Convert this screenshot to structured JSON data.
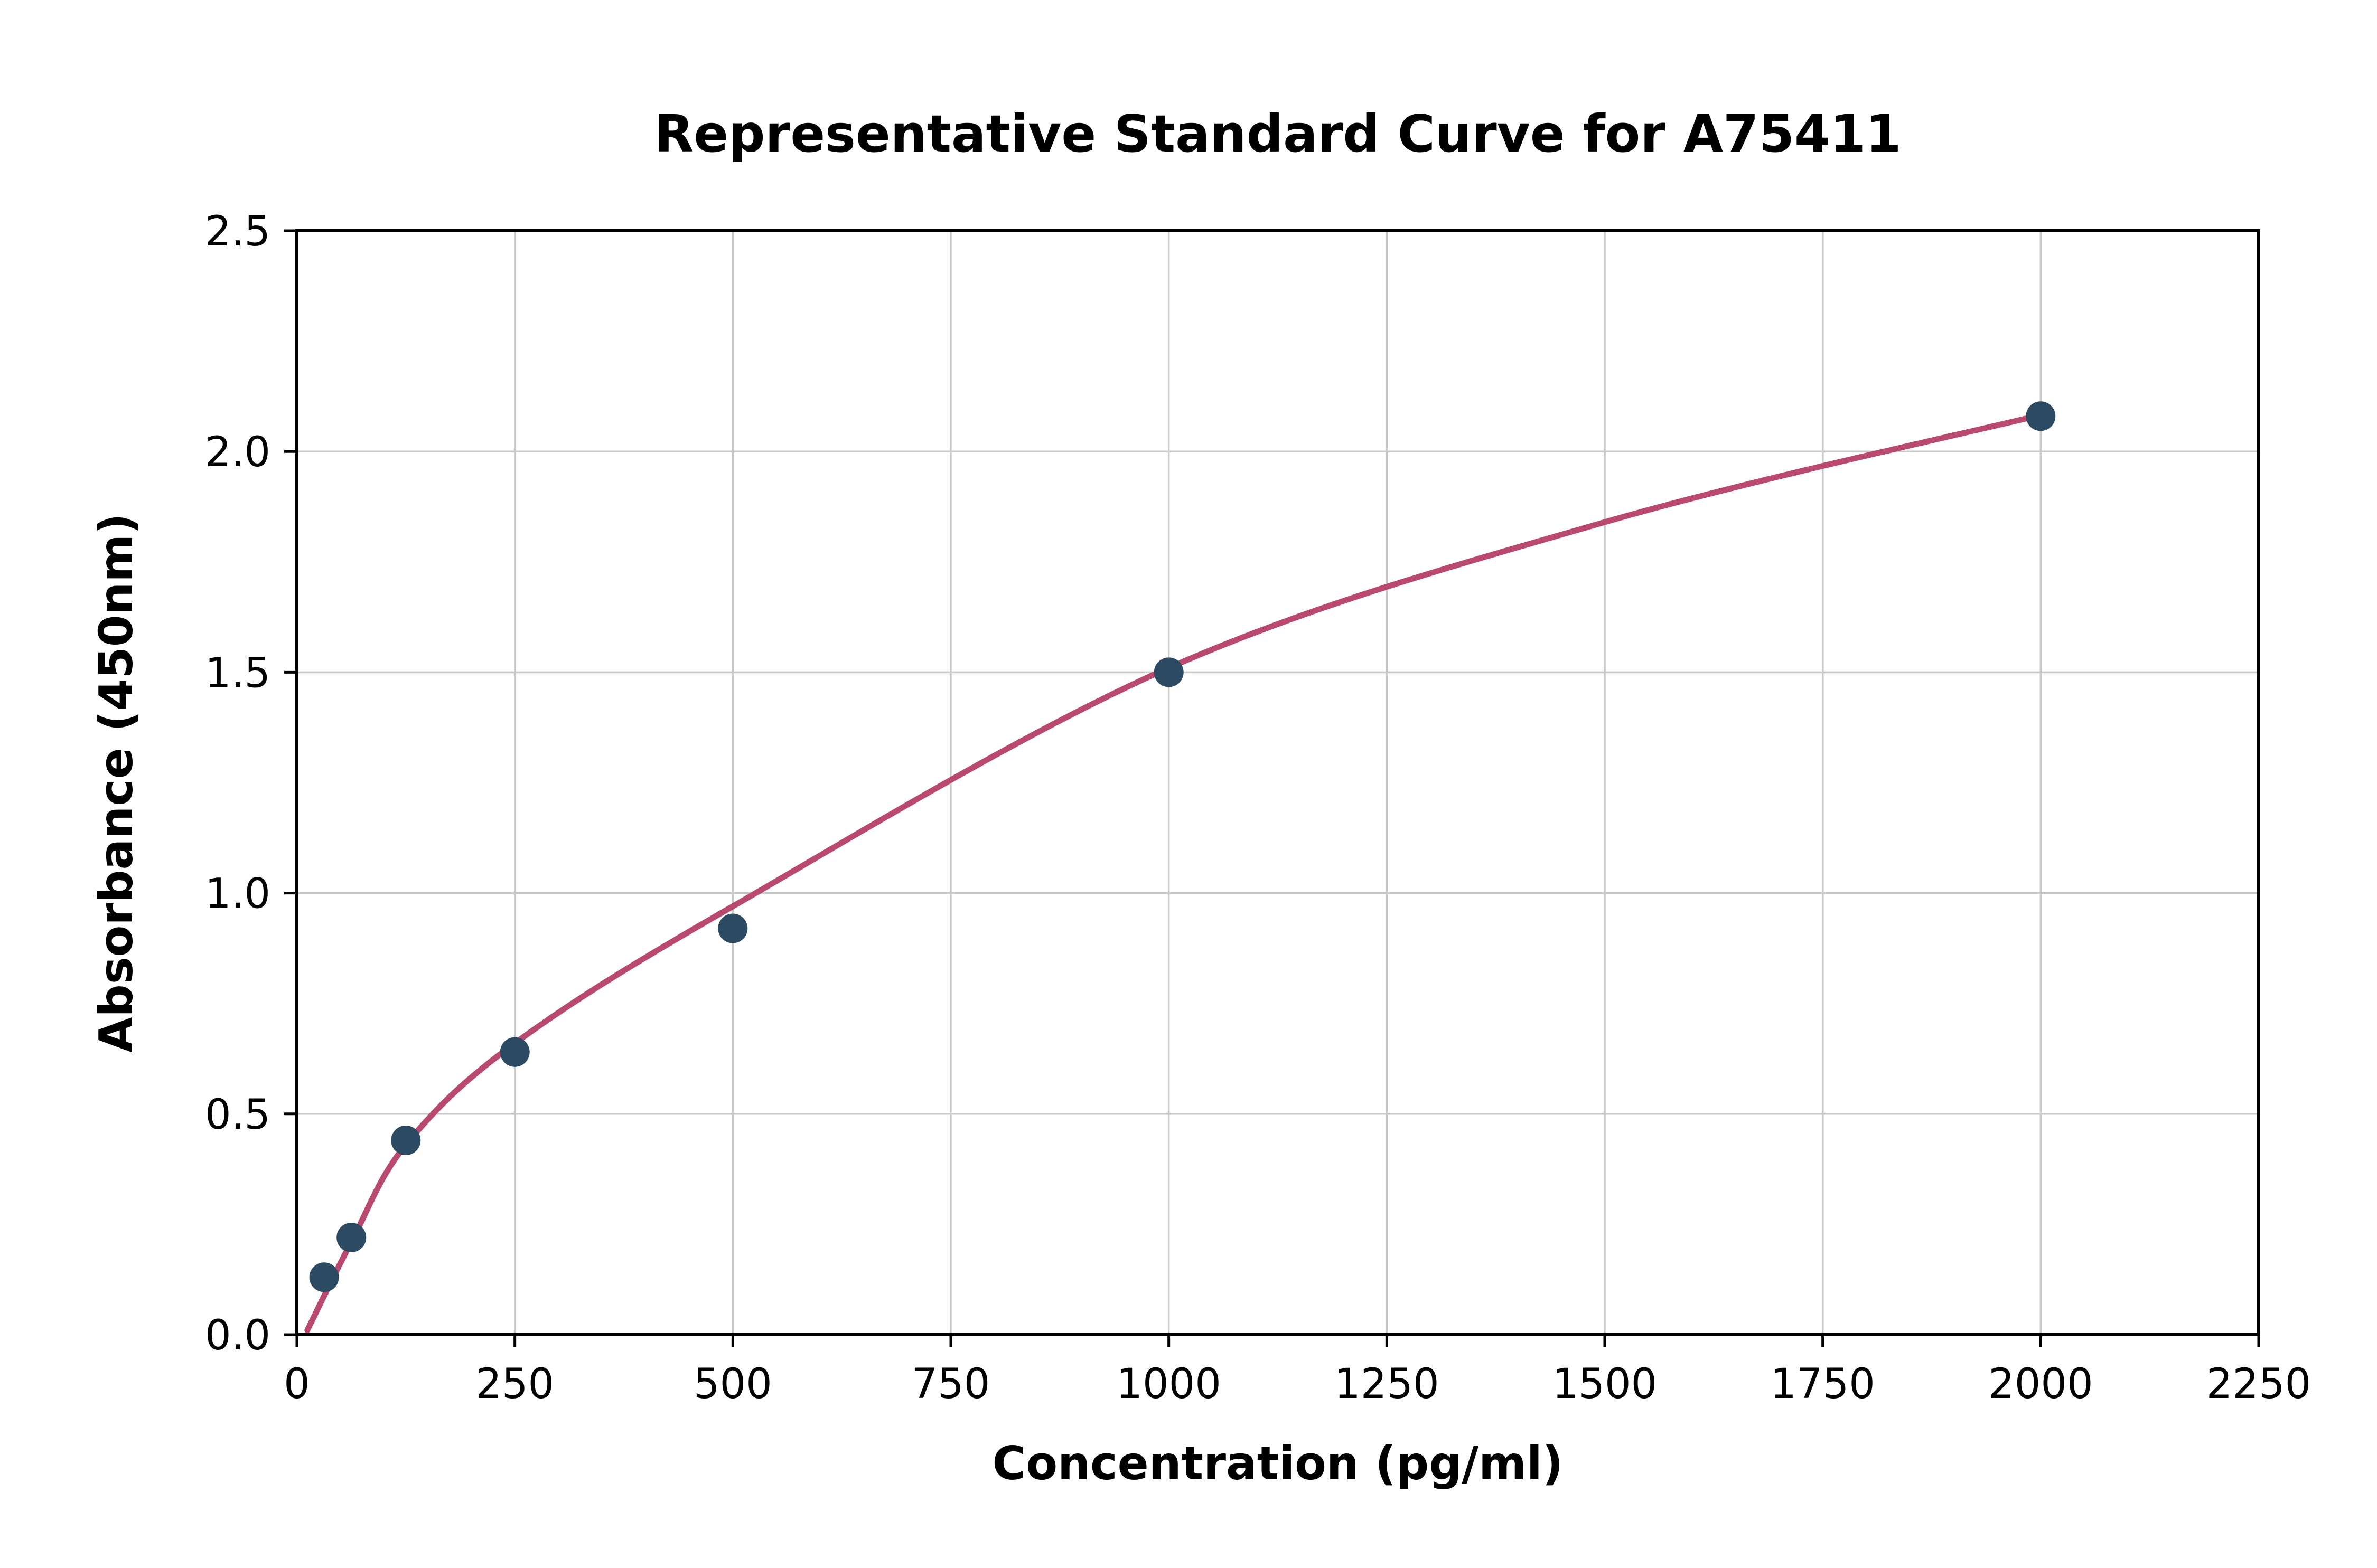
{
  "chart_data": {
    "type": "scatter",
    "title": "Representative Standard Curve for A75411",
    "xlabel": "Concentration (pg/ml)",
    "ylabel": "Absorbance (450nm)",
    "xlim": [
      0,
      2250
    ],
    "ylim": [
      0.0,
      2.5
    ],
    "grid": true,
    "legend": "none",
    "x_tick_values": [
      0,
      250,
      500,
      750,
      1000,
      1250,
      1500,
      1750,
      2000,
      2250
    ],
    "x_tick_labels": [
      "0",
      "250",
      "500",
      "750",
      "1000",
      "1250",
      "1500",
      "1750",
      "2000",
      "2250"
    ],
    "y_tick_values": [
      0.0,
      0.5,
      1.0,
      1.5,
      2.0,
      2.5
    ],
    "y_tick_labels": [
      "0.0",
      "0.5",
      "1.0",
      "1.5",
      "2.0",
      "2.5"
    ],
    "series": [
      {
        "name": "standard-points",
        "type": "scatter",
        "x": [
          31.25,
          62.5,
          125,
          250,
          500,
          1000,
          2000
        ],
        "y": [
          0.13,
          0.22,
          0.44,
          0.64,
          0.92,
          1.5,
          2.08
        ],
        "color": "#2d4a63"
      },
      {
        "name": "fitted-curve",
        "type": "line",
        "x": [
          12,
          62.5,
          125,
          250,
          500,
          1000,
          1500,
          2005
        ],
        "y": [
          0.01,
          0.21,
          0.43,
          0.66,
          0.97,
          1.51,
          1.84,
          2.085
        ],
        "color": "#b9496e"
      }
    ],
    "colors": {
      "grid": "#c9c9c9",
      "axis": "#000000",
      "background": "#ffffff"
    }
  }
}
